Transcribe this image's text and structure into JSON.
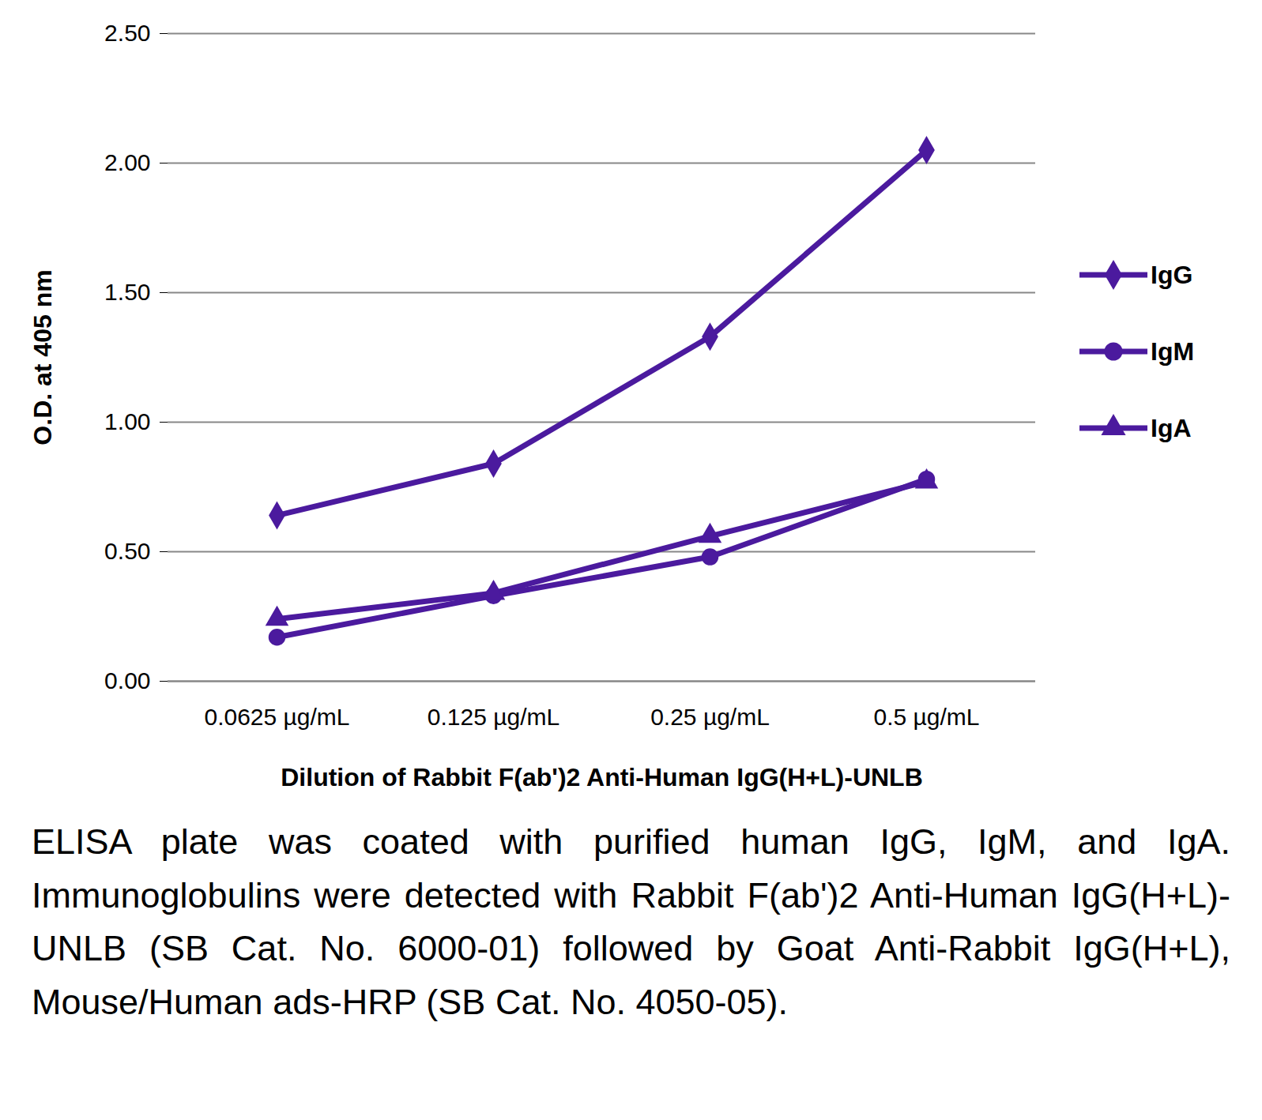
{
  "chart_data": {
    "type": "line",
    "categories": [
      "0.0625 µg/mL",
      "0.125 µg/mL",
      "0.25 µg/mL",
      "0.5 µg/mL"
    ],
    "x_label": "Dilution of Rabbit F(ab')2 Anti-Human IgG(H+L)-UNLB",
    "y_label": "O.D. at 405 nm",
    "series": [
      {
        "name": "IgG",
        "color": "#4b1a9e",
        "marker": "diamond",
        "values": [
          0.64,
          0.84,
          1.33,
          2.05
        ]
      },
      {
        "name": "IgM",
        "color": "#4b1a9e",
        "marker": "circle",
        "values": [
          0.17,
          0.33,
          0.48,
          0.78
        ]
      },
      {
        "name": "IgA",
        "color": "#4b1a9e",
        "marker": "triangle",
        "values": [
          0.24,
          0.34,
          0.56,
          0.77
        ]
      }
    ],
    "ylim": [
      0,
      2.5
    ],
    "yticks": [
      {
        "value": 0,
        "label": "0.00"
      },
      {
        "value": 0.5,
        "label": "0.50"
      },
      {
        "value": 1,
        "label": "1.00"
      },
      {
        "value": 1.5,
        "label": "1.50"
      },
      {
        "value": 2,
        "label": "2.00"
      },
      {
        "value": 2.5,
        "label": "2.50"
      }
    ],
    "grid": true,
    "legend": "right",
    "caption": "ELISA plate was coated with purified human IgG, IgM, and IgA. Immunoglobulins were detected with Rabbit F(ab')2 Anti-Human IgG(H+L)-UNLB (SB Cat. No. 6000-01) followed by Goat Anti-Rabbit IgG(H+L), Mouse/Human ads-HRP (SB Cat. No. 4050-05)."
  }
}
